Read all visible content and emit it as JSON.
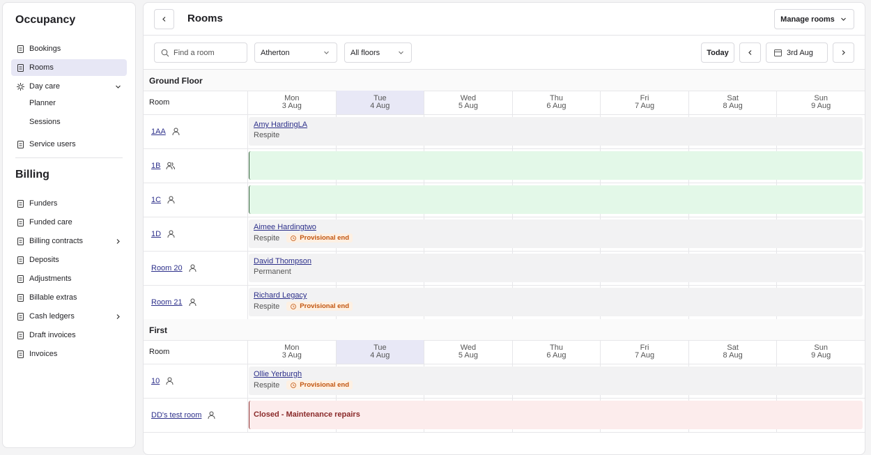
{
  "sidebar": {
    "sections": [
      {
        "title": "Occupancy",
        "items": [
          {
            "label": "Bookings"
          },
          {
            "label": "Rooms",
            "active": true
          },
          {
            "label": "Day care",
            "expanded": true,
            "children": [
              "Planner",
              "Sessions"
            ]
          },
          {
            "label": "Service users"
          }
        ]
      },
      {
        "title": "Billing",
        "items": [
          {
            "label": "Funders"
          },
          {
            "label": "Funded care"
          },
          {
            "label": "Billing contracts",
            "has_children": true
          },
          {
            "label": "Deposits"
          },
          {
            "label": "Adjustments"
          },
          {
            "label": "Billable extras"
          },
          {
            "label": "Cash ledgers",
            "has_children": true
          },
          {
            "label": "Draft invoices"
          },
          {
            "label": "Invoices"
          }
        ]
      }
    ]
  },
  "header": {
    "title": "Rooms",
    "action": "Manage rooms"
  },
  "toolbar": {
    "search_placeholder": "Find a room",
    "site": "Atherton",
    "floor_filter": "All floors",
    "today": "Today",
    "date": "3rd Aug"
  },
  "calendar": {
    "room_header": "Room",
    "days": [
      {
        "day": "Mon",
        "date": "3 Aug"
      },
      {
        "day": "Tue",
        "date": "4 Aug",
        "highlight": true
      },
      {
        "day": "Wed",
        "date": "5 Aug"
      },
      {
        "day": "Thu",
        "date": "6 Aug"
      },
      {
        "day": "Fri",
        "date": "7 Aug"
      },
      {
        "day": "Sat",
        "date": "8 Aug"
      },
      {
        "day": "Sun",
        "date": "9 Aug"
      }
    ],
    "floors": [
      {
        "name": "Ground Floor",
        "rooms": [
          {
            "name": "1AA",
            "icon": "single",
            "status": "booked",
            "resident": "Amy HardingLA",
            "stay": "Respite"
          },
          {
            "name": "1B",
            "icon": "shared",
            "status": "available"
          },
          {
            "name": "1C",
            "icon": "single",
            "status": "available"
          },
          {
            "name": "1D",
            "icon": "single",
            "status": "booked",
            "resident": "Aimee Hardingtwo",
            "stay": "Respite",
            "badge": "Provisional end"
          },
          {
            "name": "Room 20",
            "icon": "single",
            "status": "booked",
            "resident": "David Thompson",
            "stay": "Permanent"
          },
          {
            "name": "Room 21",
            "icon": "single",
            "status": "booked",
            "resident": "Richard Legacy",
            "stay": "Respite",
            "badge": "Provisional end"
          }
        ]
      },
      {
        "name": "First",
        "rooms": [
          {
            "name": "10",
            "icon": "single",
            "status": "booked",
            "resident": "Ollie Yerburgh",
            "stay": "Respite",
            "badge": "Provisional end"
          },
          {
            "name": "DD's test room",
            "icon": "single",
            "status": "closed",
            "note": "Closed - Maintenance repairs"
          }
        ]
      }
    ]
  }
}
